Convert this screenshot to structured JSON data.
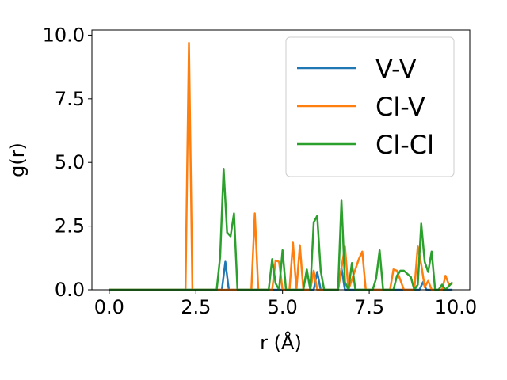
{
  "chart_data": {
    "type": "line",
    "xlabel": "r (Å)",
    "ylabel": "g(r)",
    "xlim": [
      -0.5,
      10.4
    ],
    "ylim": [
      0,
      10.2
    ],
    "xticks": [
      0.0,
      2.5,
      5.0,
      7.5,
      10.0
    ],
    "xtick_labels": [
      "0.0",
      "2.5",
      "5.0",
      "7.5",
      "10.0"
    ],
    "yticks": [
      0.0,
      2.5,
      5.0,
      7.5,
      10.0
    ],
    "ytick_labels": [
      "0.0",
      "2.5",
      "5.0",
      "7.5",
      "10.0"
    ],
    "grid": false,
    "legend_position": "top-right",
    "series": [
      {
        "name": "V-V",
        "color": "#1f77b4",
        "points": [
          [
            0,
            0
          ],
          [
            3.25,
            0
          ],
          [
            3.35,
            1.1
          ],
          [
            3.45,
            0
          ],
          [
            5.0,
            0
          ],
          [
            5.9,
            0
          ],
          [
            6.0,
            0.7
          ],
          [
            6.1,
            0
          ],
          [
            6.6,
            0
          ],
          [
            6.7,
            0.85
          ],
          [
            6.8,
            0
          ],
          [
            8.95,
            0
          ],
          [
            9.05,
            0.3
          ],
          [
            9.15,
            0
          ],
          [
            9.9,
            0
          ]
        ]
      },
      {
        "name": "Cl-V",
        "color": "#ff7f0e",
        "points": [
          [
            0,
            0
          ],
          [
            2.2,
            0
          ],
          [
            2.3,
            9.7
          ],
          [
            2.4,
            0
          ],
          [
            4.1,
            0
          ],
          [
            4.2,
            3.0
          ],
          [
            4.3,
            0
          ],
          [
            4.7,
            0
          ],
          [
            4.8,
            1.15
          ],
          [
            4.9,
            1.1
          ],
          [
            5.0,
            0
          ],
          [
            5.2,
            0
          ],
          [
            5.3,
            1.85
          ],
          [
            5.4,
            0
          ],
          [
            5.5,
            1.75
          ],
          [
            5.6,
            0
          ],
          [
            5.8,
            0
          ],
          [
            5.9,
            0.75
          ],
          [
            6.0,
            0
          ],
          [
            6.6,
            0
          ],
          [
            6.7,
            0.85
          ],
          [
            6.8,
            1.7
          ],
          [
            6.9,
            0
          ],
          [
            7.2,
            1.2
          ],
          [
            7.3,
            1.5
          ],
          [
            7.4,
            0
          ],
          [
            8.1,
            0
          ],
          [
            8.2,
            0.8
          ],
          [
            8.3,
            0.75
          ],
          [
            8.5,
            0
          ],
          [
            8.8,
            0
          ],
          [
            8.9,
            1.7
          ],
          [
            9.0,
            1.0
          ],
          [
            9.1,
            0.1
          ],
          [
            9.2,
            0.35
          ],
          [
            9.3,
            0
          ],
          [
            9.6,
            0
          ],
          [
            9.7,
            0.55
          ],
          [
            9.8,
            0.2
          ],
          [
            9.9,
            0.25
          ]
        ]
      },
      {
        "name": "Cl-Cl",
        "color": "#2ca02c",
        "points": [
          [
            0,
            0
          ],
          [
            3.1,
            0
          ],
          [
            3.2,
            1.3
          ],
          [
            3.3,
            4.75
          ],
          [
            3.4,
            2.25
          ],
          [
            3.5,
            2.1
          ],
          [
            3.6,
            3.0
          ],
          [
            3.7,
            0
          ],
          [
            4.6,
            0
          ],
          [
            4.7,
            1.2
          ],
          [
            4.8,
            0.25
          ],
          [
            4.9,
            0
          ],
          [
            5.0,
            1.55
          ],
          [
            5.1,
            0
          ],
          [
            5.6,
            0
          ],
          [
            5.7,
            0.8
          ],
          [
            5.8,
            0
          ],
          [
            5.9,
            2.65
          ],
          [
            6.0,
            2.9
          ],
          [
            6.1,
            0.75
          ],
          [
            6.2,
            0
          ],
          [
            6.6,
            0
          ],
          [
            6.7,
            3.5
          ],
          [
            6.8,
            0.3
          ],
          [
            6.9,
            0
          ],
          [
            7.0,
            1.05
          ],
          [
            7.1,
            0
          ],
          [
            7.6,
            0
          ],
          [
            7.7,
            0.45
          ],
          [
            7.8,
            1.55
          ],
          [
            7.9,
            0
          ],
          [
            8.2,
            0
          ],
          [
            8.3,
            0.55
          ],
          [
            8.4,
            0.75
          ],
          [
            8.5,
            0.75
          ],
          [
            8.7,
            0.5
          ],
          [
            8.8,
            0
          ],
          [
            8.9,
            0.2
          ],
          [
            9.0,
            2.6
          ],
          [
            9.1,
            1.1
          ],
          [
            9.2,
            0.7
          ],
          [
            9.3,
            1.5
          ],
          [
            9.4,
            0
          ],
          [
            9.5,
            0
          ],
          [
            9.6,
            0.2
          ],
          [
            9.7,
            0
          ],
          [
            9.9,
            0.3
          ]
        ]
      }
    ]
  }
}
